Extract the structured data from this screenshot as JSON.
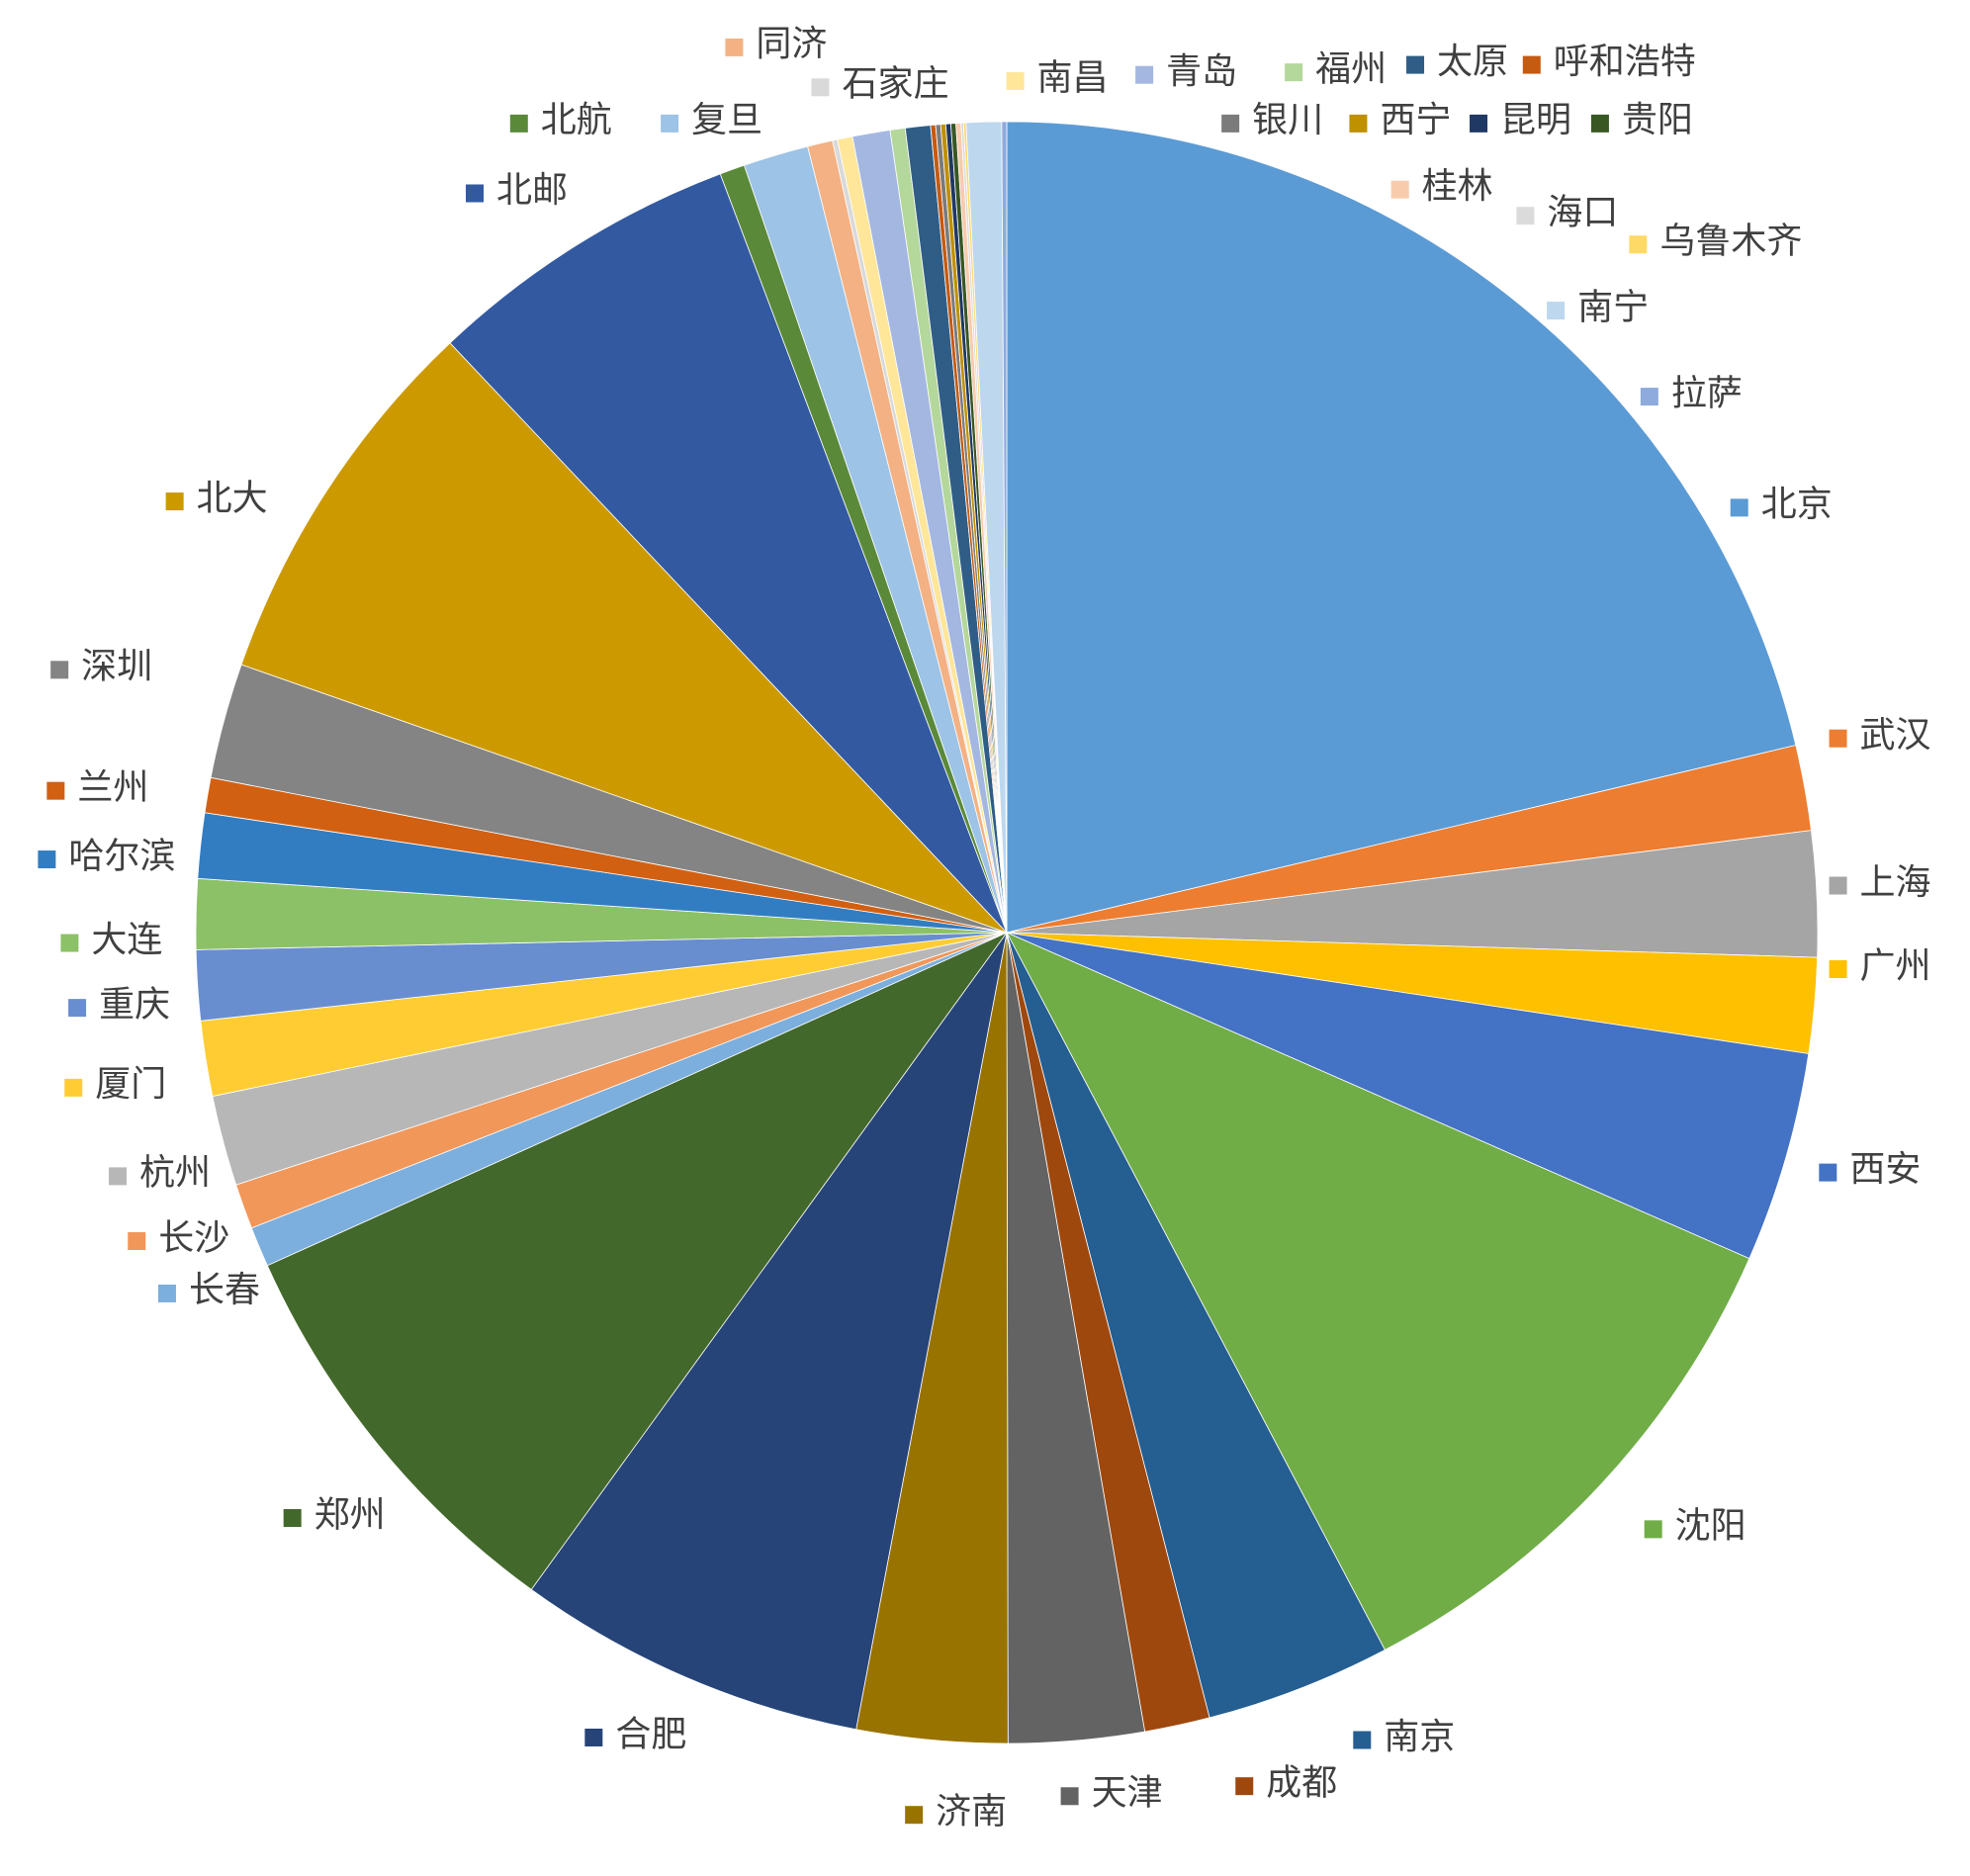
{
  "chart_data": {
    "type": "pie",
    "categories": [
      "北京",
      "武汉",
      "上海",
      "广州",
      "西安",
      "沈阳",
      "南京",
      "成都",
      "天津",
      "济南",
      "合肥",
      "郑州",
      "长春",
      "长沙",
      "杭州",
      "厦门",
      "重庆",
      "大连",
      "哈尔滨",
      "兰州",
      "深圳",
      "北大",
      "北邮",
      "北航",
      "复旦",
      "同济",
      "石家庄",
      "南昌",
      "青岛",
      "福州",
      "太原",
      "呼和浩特",
      "银川",
      "西宁",
      "昆明",
      "贵阳",
      "桂林",
      "海口",
      "乌鲁木齐",
      "南宁",
      "拉萨"
    ],
    "values": [
      21.3,
      1.7,
      2.5,
      1.9,
      4.2,
      10.7,
      3.7,
      1.3,
      2.7,
      3.0,
      7.0,
      8.3,
      0.8,
      0.9,
      1.8,
      1.5,
      1.4,
      1.4,
      1.3,
      0.7,
      2.3,
      7.6,
      6.3,
      0.5,
      1.3,
      0.5,
      0.1,
      0.3,
      0.75,
      0.3,
      0.5,
      0.1,
      0.1,
      0.1,
      0.1,
      0.1,
      0.1,
      0.05,
      0.05,
      0.7,
      0.1
    ],
    "colors": [
      "#5b9bd5",
      "#ed7d31",
      "#a5a5a5",
      "#ffc000",
      "#4472c4",
      "#70ad47",
      "#255e91",
      "#9e480e",
      "#636363",
      "#997300",
      "#264478",
      "#43682b",
      "#7cafdd",
      "#f1975a",
      "#b7b7b7",
      "#ffcd33",
      "#698ed0",
      "#8cc168",
      "#327dc2",
      "#d26012",
      "#848484",
      "#cc9a00",
      "#335aa1",
      "#5a8a39",
      "#9dc3e6",
      "#f4b183",
      "#d9d9d9",
      "#ffe699",
      "#a4b7e1",
      "#b4d79b",
      "#2f5d86",
      "#c55a11",
      "#7b7b7b",
      "#bf9000",
      "#203864",
      "#385723",
      "#f8cbad",
      "#dbdbdb",
      "#ffd966",
      "#bdd7ee",
      "#8faadc"
    ]
  }
}
